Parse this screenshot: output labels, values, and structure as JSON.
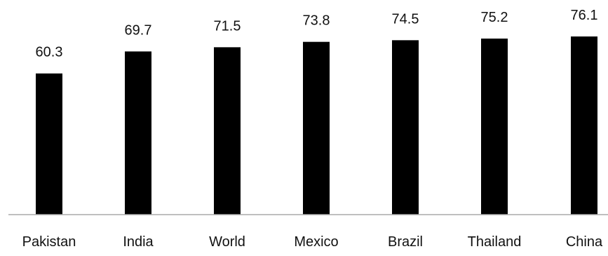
{
  "chart_data": {
    "type": "bar",
    "title": "",
    "xlabel": "",
    "ylabel": "",
    "categories": [
      "Pakistan",
      "India",
      "World",
      "Mexico",
      "Brazil",
      "Thailand",
      "China"
    ],
    "values": [
      60.3,
      69.7,
      71.5,
      73.8,
      74.5,
      75.2,
      76.1
    ],
    "value_labels": [
      "60.3",
      "69.7",
      "71.5",
      "73.8",
      "74.5",
      "75.2",
      "76.1"
    ],
    "ylim": [
      0,
      80
    ],
    "grid": false,
    "legend": "none",
    "colors": {
      "bar": "#000000",
      "axis": "#aaaaaa",
      "text": "#111111",
      "background": "#ffffff"
    }
  }
}
